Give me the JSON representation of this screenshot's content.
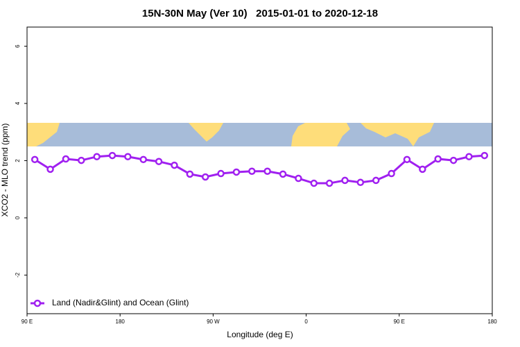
{
  "chart_data": {
    "type": "line",
    "title": "15N-30N May (Ver 10)   2015-01-01 to 2020-12-18",
    "x_label": "Longitude (deg E)",
    "y_label": "XCO2 - MLO trend (ppm)",
    "x": [
      97.5,
      112.5,
      127.5,
      142.5,
      157.5,
      172.5,
      187.5,
      202.5,
      217.5,
      232.5,
      247.5,
      262.5,
      277.5,
      292.5,
      307.5,
      322.5,
      337.5,
      352.5,
      367.5,
      382.5,
      397.5,
      412.5,
      427.5,
      442.5,
      457.5,
      472.5,
      487.5,
      502.5,
      517.5,
      532.5
    ],
    "series": [
      {
        "name": "Land (Nadir&Glint) and Ocean (Glint)",
        "color": "#a020f0",
        "values": [
          2.04,
          1.7,
          2.06,
          2.01,
          2.14,
          2.18,
          2.14,
          2.04,
          1.97,
          1.84,
          1.53,
          1.43,
          1.55,
          1.6,
          1.63,
          1.63,
          1.53,
          1.38,
          1.21,
          1.21,
          1.31,
          1.24,
          1.31,
          1.55,
          2.04,
          1.7,
          2.06,
          2.01,
          2.14,
          2.18
        ]
      }
    ],
    "xlim": [
      90,
      540
    ],
    "xticks": [
      {
        "value": 90,
        "label": "90 E"
      },
      {
        "value": 180,
        "label": "180"
      },
      {
        "value": 270,
        "label": "90 W"
      },
      {
        "value": 360,
        "label": "0"
      },
      {
        "value": 450,
        "label": "90 E"
      },
      {
        "value": 540,
        "label": "180"
      }
    ],
    "ylim": [
      -3.35,
      6.67
    ],
    "yticks": [
      6,
      4,
      2,
      0,
      -2
    ],
    "legend": "bottom-left"
  }
}
